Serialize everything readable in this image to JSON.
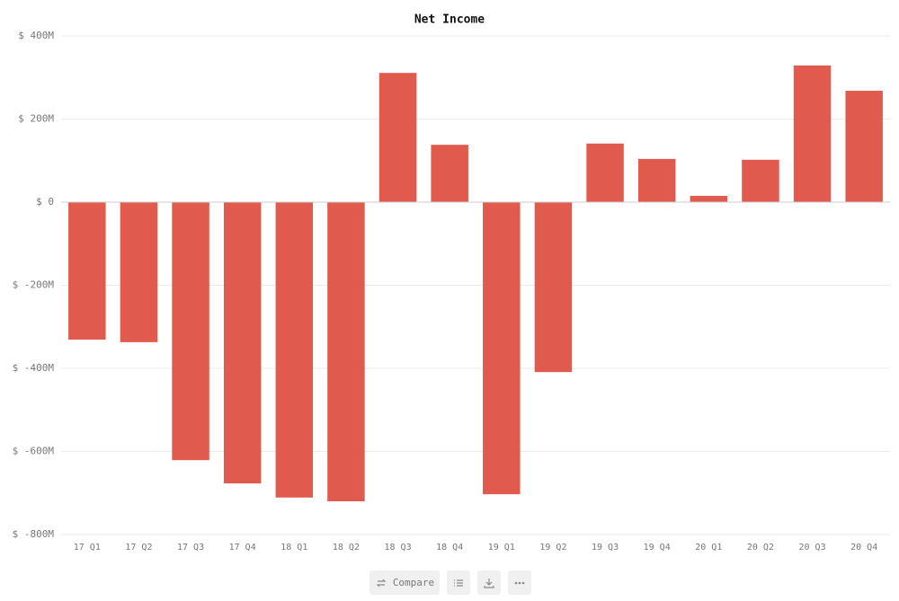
{
  "chart_data": {
    "type": "bar",
    "title": "Net Income",
    "categories": [
      "17 Q1",
      "17 Q2",
      "17 Q3",
      "17 Q4",
      "18 Q1",
      "18 Q2",
      "18 Q3",
      "18 Q4",
      "19 Q1",
      "19 Q2",
      "19 Q3",
      "19 Q4",
      "20 Q1",
      "20 Q2",
      "20 Q3",
      "20 Q4"
    ],
    "values": [
      -331,
      -337,
      -621,
      -677,
      -711,
      -720,
      311,
      138,
      -703,
      -409,
      141,
      104,
      15,
      102,
      329,
      268
    ],
    "color": "#e05a4e",
    "ylim": [
      -800,
      400
    ],
    "yticks": [
      {
        "value": -800,
        "label": "$ -800M"
      },
      {
        "value": -600,
        "label": "$ -600M"
      },
      {
        "value": -400,
        "label": "$ -400M"
      },
      {
        "value": -200,
        "label": "$ -200M"
      },
      {
        "value": 0,
        "label": "$ 0"
      },
      {
        "value": 200,
        "label": "$ 200M"
      },
      {
        "value": 400,
        "label": "$ 400M"
      }
    ],
    "grid": true
  },
  "toolbar": {
    "compare": "Compare"
  }
}
